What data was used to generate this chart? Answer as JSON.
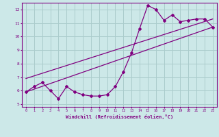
{
  "xlabel": "Windchill (Refroidissement éolien,°C)",
  "bg_color": "#cce8e8",
  "line_color": "#800080",
  "grid_color": "#aacccc",
  "x_data": [
    0,
    1,
    2,
    3,
    4,
    5,
    6,
    7,
    8,
    9,
    10,
    11,
    12,
    13,
    14,
    15,
    16,
    17,
    18,
    19,
    20,
    21,
    22,
    23
  ],
  "y_main": [
    5.9,
    6.3,
    6.6,
    6.0,
    5.4,
    6.3,
    5.9,
    5.7,
    5.6,
    5.6,
    5.7,
    6.3,
    7.4,
    8.8,
    10.6,
    12.3,
    12.0,
    11.2,
    11.6,
    11.1,
    11.2,
    11.3,
    11.3,
    10.7
  ],
  "reg_line1_x": [
    0,
    23
  ],
  "reg_line1_y": [
    5.9,
    10.7
  ],
  "reg_line2_x": [
    0,
    23
  ],
  "reg_line2_y": [
    6.9,
    11.3
  ],
  "ylim": [
    4.8,
    12.5
  ],
  "xlim": [
    -0.5,
    23.5
  ],
  "xticks": [
    0,
    1,
    2,
    3,
    4,
    5,
    6,
    7,
    8,
    9,
    10,
    11,
    12,
    13,
    14,
    15,
    16,
    17,
    18,
    19,
    20,
    21,
    22,
    23
  ],
  "yticks": [
    5,
    6,
    7,
    8,
    9,
    10,
    11,
    12
  ]
}
